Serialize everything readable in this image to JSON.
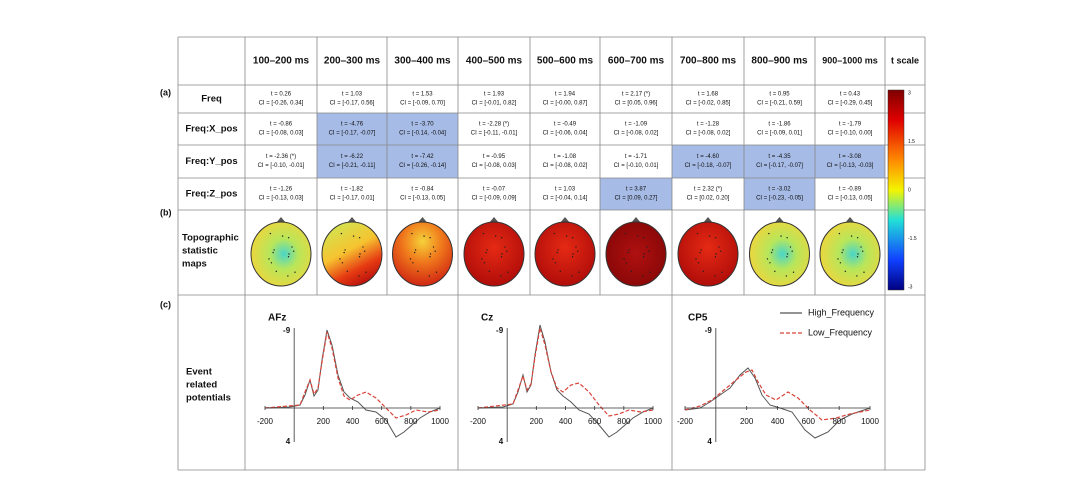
{
  "figure": {
    "panel_labels": [
      "(a)",
      "(b)",
      "(c)"
    ],
    "table": {
      "headers": [
        "100–200 ms",
        "200–300 ms",
        "300–400 ms",
        "400–500 ms",
        "500–600 ms",
        "600–700 ms",
        "700–800 ms",
        "800–900 ms",
        "900–1000 ms",
        "t scale"
      ],
      "rows": [
        {
          "label": "Freq",
          "cells": [
            {
              "t": "t = 0.26",
              "ci": "CI = [-0.26, 0.34]",
              "highlighted": false
            },
            {
              "t": "t = 1.03",
              "ci": "CI = [-0.17, 0.56]",
              "highlighted": false
            },
            {
              "t": "t = 1.53",
              "ci": "CI = [-0.09, 0.70]",
              "highlighted": false
            },
            {
              "t": "t = 1.93",
              "ci": "CI = [-0.01, 0.82]",
              "highlighted": false
            },
            {
              "t": "t = 1.94",
              "ci": "CI = [-0.00, 0.87]",
              "highlighted": false
            },
            {
              "t": "t = 2.17 (*)",
              "ci": "CI = [0.05, 0.96]",
              "highlighted": false
            },
            {
              "t": "t = 1.68",
              "ci": "CI = [-0.02, 0.85]",
              "highlighted": false
            },
            {
              "t": "t = 0.95",
              "ci": "CI = [-0.21, 0.59]",
              "highlighted": false
            },
            {
              "t": "t = 0.43",
              "ci": "CI = [-0.29, 0.45]",
              "highlighted": false
            }
          ]
        },
        {
          "label": "Freq:X_pos",
          "cells": [
            {
              "t": "t = -0.86",
              "ci": "CI = [-0.08, 0.03]",
              "highlighted": false
            },
            {
              "t": "t = -4.76",
              "ci": "CI = [-0.17, -0.07]",
              "highlighted": true
            },
            {
              "t": "t = -3.70",
              "ci": "CI = [-0.14, -0.04]",
              "highlighted": true
            },
            {
              "t": "t = -2.28 (*)",
              "ci": "CI = [-0.11, -0.01]",
              "highlighted": false
            },
            {
              "t": "t = -0.49",
              "ci": "CI = [-0.06, 0.04]",
              "highlighted": false
            },
            {
              "t": "t = -1.09",
              "ci": "CI = [-0.08, 0.02]",
              "highlighted": false
            },
            {
              "t": "t = -1.28",
              "ci": "CI = [-0.08, 0.02]",
              "highlighted": false
            },
            {
              "t": "t = -1.86",
              "ci": "CI = [-0.09, 0.01]",
              "highlighted": false
            },
            {
              "t": "t = -1.79",
              "ci": "CI = [-0.10, 0.00]",
              "highlighted": false
            }
          ]
        },
        {
          "label": "Freq:Y_pos",
          "cells": [
            {
              "t": "t = -2.36 (*)",
              "ci": "CI = [-0.10, -0.01]",
              "highlighted": false
            },
            {
              "t": "t = -6.22",
              "ci": "CI = [-0.21, -0.11]",
              "highlighted": true
            },
            {
              "t": "t = -7.42",
              "ci": "CI = [-0.26, -0.14]",
              "highlighted": true
            },
            {
              "t": "t = -0.95",
              "ci": "CI = [-0.08, 0.03]",
              "highlighted": false
            },
            {
              "t": "t = -1.08",
              "ci": "CI = [-0.08, 0.02]",
              "highlighted": false
            },
            {
              "t": "t = -1.71",
              "ci": "CI = [-0.10, 0.01]",
              "highlighted": false
            },
            {
              "t": "t = -4.60",
              "ci": "CI = [-0.18, -0.07]",
              "highlighted": true
            },
            {
              "t": "t = -4.35",
              "ci": "CI = [-0.17, -0.07]",
              "highlighted": true
            },
            {
              "t": "t = -3.08",
              "ci": "CI = [-0.13, -0.03]",
              "highlighted": true
            }
          ]
        },
        {
          "label": "Freq:Z_pos",
          "cells": [
            {
              "t": "t = -1.26",
              "ci": "CI = [-0.13, 0.03]",
              "highlighted": false
            },
            {
              "t": "t = -1.82",
              "ci": "CI = [-0.17, 0.01]",
              "highlighted": false
            },
            {
              "t": "t = -0.84",
              "ci": "CI = [-0.13, 0.05]",
              "highlighted": false
            },
            {
              "t": "t = -0.07",
              "ci": "CI = [-0.09, 0.09]",
              "highlighted": false
            },
            {
              "t": "t = 1.03",
              "ci": "CI = [-0.04, 0.14]",
              "highlighted": false
            },
            {
              "t": "t = 3.87",
              "ci": "CI = [0.09, 0.27]",
              "highlighted": true
            },
            {
              "t": "t = 2.32 (*)",
              "ci": "CI = [0.02, 0.20]",
              "highlighted": false
            },
            {
              "t": "t = -3.02",
              "ci": "CI = [-0.23, -0.05]",
              "highlighted": true
            },
            {
              "t": "t = -0.89",
              "ci": "CI = [-0.13, 0.05]",
              "highlighted": false
            }
          ]
        }
      ],
      "topographic_label": [
        "Topographic",
        "statistic",
        "maps"
      ],
      "colorbar_ticks": [
        "3",
        "1.5",
        "0",
        "-1.5",
        "-3"
      ]
    },
    "erp": {
      "label": [
        "Event",
        "related",
        "potentials"
      ],
      "panels": [
        {
          "electrode": "AFz",
          "x_ticks": [
            "-200",
            "200",
            "400",
            "600",
            "800",
            "1000"
          ],
          "y_ticks": [
            "-9",
            "4"
          ]
        },
        {
          "electrode": "Cz",
          "x_ticks": [
            "-200",
            "200",
            "400",
            "600",
            "800",
            "1000"
          ],
          "y_ticks": [
            "-9",
            "4"
          ]
        },
        {
          "electrode": "CP5",
          "x_ticks": [
            "-200",
            "200",
            "400",
            "600",
            "800",
            "1000"
          ],
          "y_ticks": [
            "-9",
            "4"
          ]
        }
      ],
      "legend": [
        "High_Frequency",
        "Low_Frequency"
      ]
    }
  }
}
